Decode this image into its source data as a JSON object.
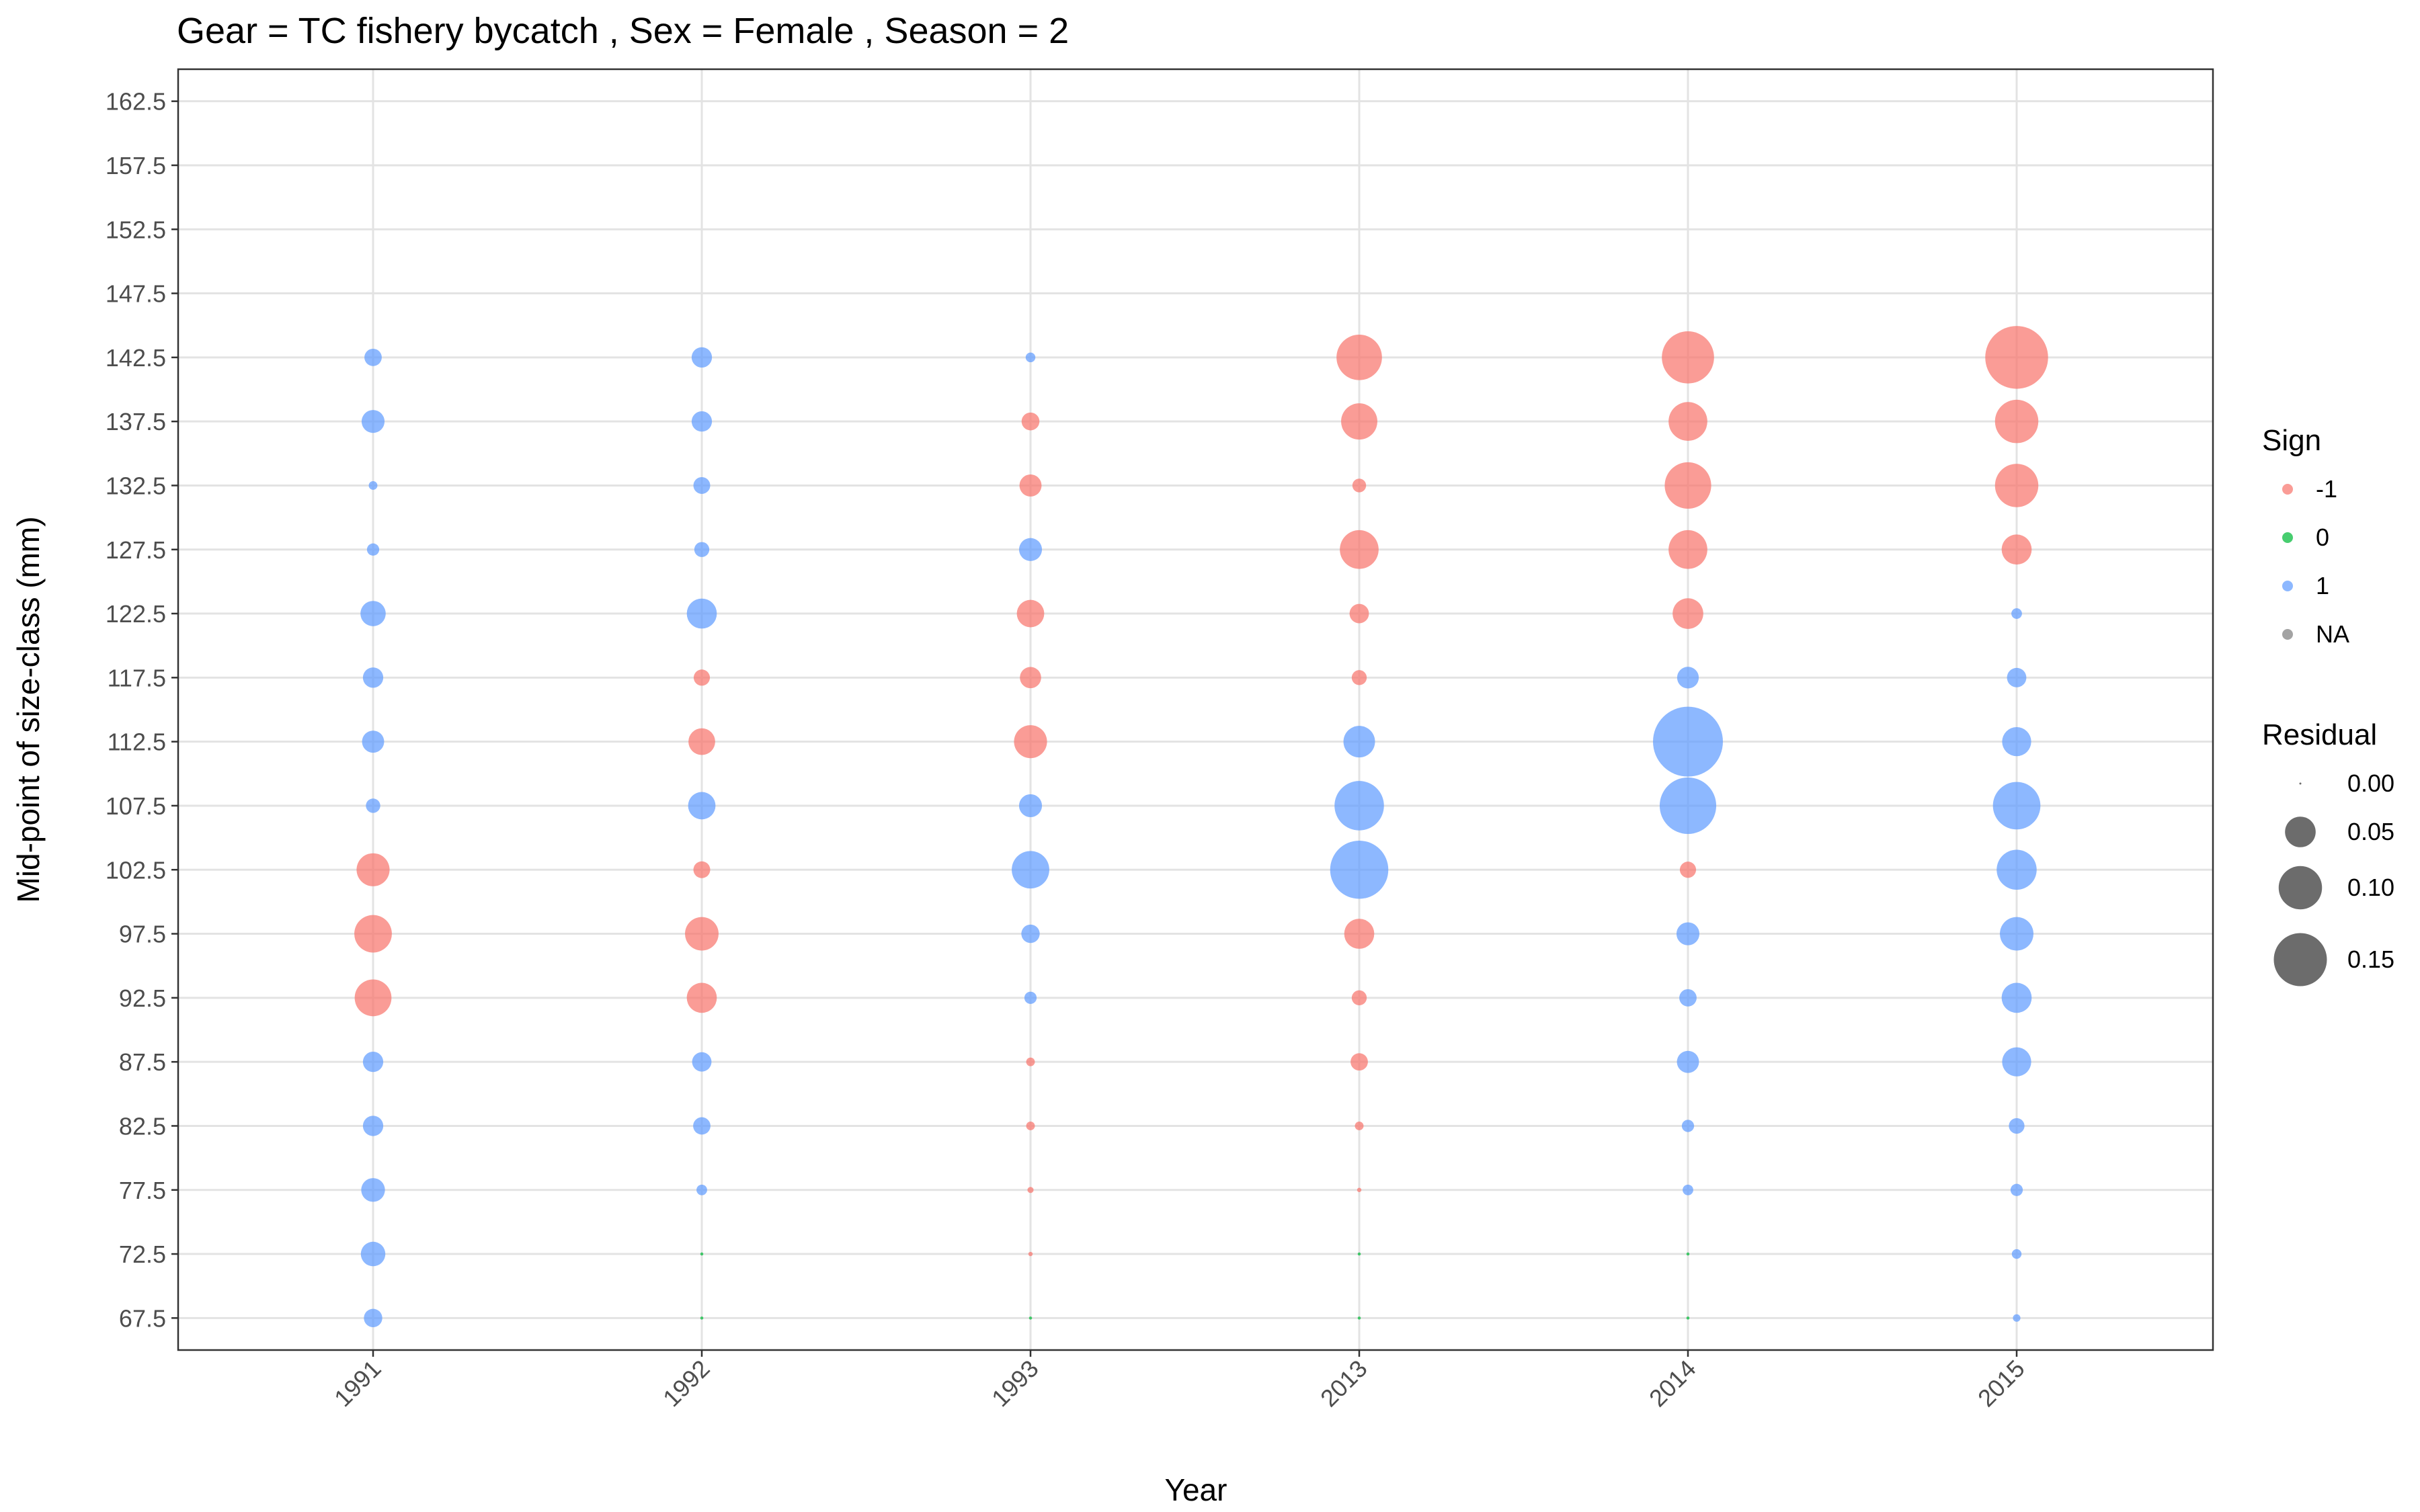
{
  "chart_data": {
    "type": "scatter",
    "title": "Gear = TC fishery bycatch , Sex = Female , Season = 2",
    "xlabel": "Year",
    "ylabel": "Mid-point of size-class (mm)",
    "x_categories": [
      "1991",
      "1992",
      "1993",
      "2013",
      "2014",
      "2015"
    ],
    "y_ticks": [
      "67.5",
      "72.5",
      "77.5",
      "82.5",
      "87.5",
      "92.5",
      "97.5",
      "102.5",
      "107.5",
      "112.5",
      "117.5",
      "122.5",
      "127.5",
      "132.5",
      "137.5",
      "142.5",
      "147.5",
      "152.5",
      "157.5",
      "162.5"
    ],
    "ylim": [
      65,
      165
    ],
    "grid": true,
    "legend_position": "right",
    "sign_legend": {
      "title": "Sign",
      "entries": [
        {
          "label": "-1",
          "color": "#F8766D"
        },
        {
          "label": "0",
          "color": "#00BA38"
        },
        {
          "label": "1",
          "color": "#619CFF"
        },
        {
          "label": "NA",
          "color": "#7F7F7F"
        }
      ]
    },
    "size_legend": {
      "title": "Residual",
      "entries": [
        {
          "label": "0.00",
          "value": 0.0
        },
        {
          "label": "0.05",
          "value": 0.05
        },
        {
          "label": "0.10",
          "value": 0.1
        },
        {
          "label": "0.15",
          "value": 0.15
        }
      ]
    },
    "series": [
      {
        "x": "1991",
        "points": [
          [
            142.5,
            0.016,
            1
          ],
          [
            137.5,
            0.028,
            1
          ],
          [
            132.5,
            0.004,
            1
          ],
          [
            127.5,
            0.008,
            1
          ],
          [
            122.5,
            0.034,
            1
          ],
          [
            117.5,
            0.022,
            1
          ],
          [
            112.5,
            0.026,
            1
          ],
          [
            107.5,
            0.011,
            1
          ],
          [
            102.5,
            0.058,
            -1
          ],
          [
            97.5,
            0.075,
            -1
          ],
          [
            92.5,
            0.072,
            -1
          ],
          [
            87.5,
            0.022,
            1
          ],
          [
            82.5,
            0.022,
            1
          ],
          [
            77.5,
            0.03,
            1
          ],
          [
            72.5,
            0.032,
            1
          ],
          [
            67.5,
            0.018,
            1
          ]
        ]
      },
      {
        "x": "1992",
        "points": [
          [
            142.5,
            0.022,
            1
          ],
          [
            137.5,
            0.022,
            1
          ],
          [
            132.5,
            0.015,
            1
          ],
          [
            127.5,
            0.012,
            1
          ],
          [
            122.5,
            0.048,
            1
          ],
          [
            117.5,
            0.014,
            -1
          ],
          [
            112.5,
            0.038,
            -1
          ],
          [
            107.5,
            0.04,
            1
          ],
          [
            102.5,
            0.015,
            -1
          ],
          [
            97.5,
            0.06,
            -1
          ],
          [
            92.5,
            0.048,
            -1
          ],
          [
            87.5,
            0.02,
            1
          ],
          [
            82.5,
            0.016,
            1
          ],
          [
            77.5,
            0.006,
            1
          ],
          [
            72.5,
            0.0005,
            0
          ],
          [
            67.5,
            0.0005,
            0
          ]
        ]
      },
      {
        "x": "1993",
        "points": [
          [
            142.5,
            0.005,
            1
          ],
          [
            137.5,
            0.017,
            -1
          ],
          [
            132.5,
            0.026,
            -1
          ],
          [
            127.5,
            0.028,
            1
          ],
          [
            122.5,
            0.04,
            -1
          ],
          [
            117.5,
            0.024,
            -1
          ],
          [
            112.5,
            0.058,
            -1
          ],
          [
            107.5,
            0.028,
            1
          ],
          [
            102.5,
            0.075,
            1
          ],
          [
            97.5,
            0.018,
            1
          ],
          [
            92.5,
            0.008,
            1
          ],
          [
            87.5,
            0.004,
            -1
          ],
          [
            82.5,
            0.004,
            -1
          ],
          [
            77.5,
            0.002,
            -1
          ],
          [
            72.5,
            0.001,
            -1
          ],
          [
            67.5,
            0.0005,
            0
          ]
        ]
      },
      {
        "x": "2013",
        "points": [
          [
            142.5,
            0.11,
            -1
          ],
          [
            137.5,
            0.07,
            -1
          ],
          [
            132.5,
            0.01,
            -1
          ],
          [
            127.5,
            0.08,
            -1
          ],
          [
            122.5,
            0.02,
            -1
          ],
          [
            117.5,
            0.012,
            -1
          ],
          [
            112.5,
            0.053,
            1
          ],
          [
            107.5,
            0.13,
            1
          ],
          [
            102.5,
            0.18,
            1
          ],
          [
            97.5,
            0.048,
            -1
          ],
          [
            92.5,
            0.012,
            -1
          ],
          [
            87.5,
            0.016,
            -1
          ],
          [
            82.5,
            0.004,
            -1
          ],
          [
            77.5,
            0.001,
            -1
          ],
          [
            72.5,
            0.0005,
            0
          ],
          [
            67.5,
            0.0005,
            0
          ]
        ]
      },
      {
        "x": "2014",
        "points": [
          [
            142.5,
            0.145,
            -1
          ],
          [
            137.5,
            0.08,
            -1
          ],
          [
            132.5,
            0.115,
            -1
          ],
          [
            127.5,
            0.08,
            -1
          ],
          [
            122.5,
            0.05,
            -1
          ],
          [
            117.5,
            0.025,
            1
          ],
          [
            112.5,
            0.26,
            1
          ],
          [
            107.5,
            0.17,
            1
          ],
          [
            102.5,
            0.014,
            -1
          ],
          [
            97.5,
            0.028,
            1
          ],
          [
            92.5,
            0.016,
            1
          ],
          [
            87.5,
            0.026,
            1
          ],
          [
            82.5,
            0.008,
            1
          ],
          [
            77.5,
            0.006,
            1
          ],
          [
            72.5,
            0.0005,
            0
          ],
          [
            67.5,
            0.0005,
            0
          ]
        ]
      },
      {
        "x": "2015",
        "points": [
          [
            142.5,
            0.21,
            -1
          ],
          [
            137.5,
            0.1,
            -1
          ],
          [
            132.5,
            0.1,
            -1
          ],
          [
            127.5,
            0.048,
            -1
          ],
          [
            122.5,
            0.006,
            1
          ],
          [
            117.5,
            0.02,
            1
          ],
          [
            112.5,
            0.045,
            1
          ],
          [
            107.5,
            0.12,
            1
          ],
          [
            102.5,
            0.085,
            1
          ],
          [
            97.5,
            0.06,
            1
          ],
          [
            92.5,
            0.048,
            1
          ],
          [
            87.5,
            0.045,
            1
          ],
          [
            82.5,
            0.013,
            1
          ],
          [
            77.5,
            0.008,
            1
          ],
          [
            72.5,
            0.005,
            1
          ],
          [
            67.5,
            0.003,
            1
          ]
        ]
      }
    ]
  }
}
